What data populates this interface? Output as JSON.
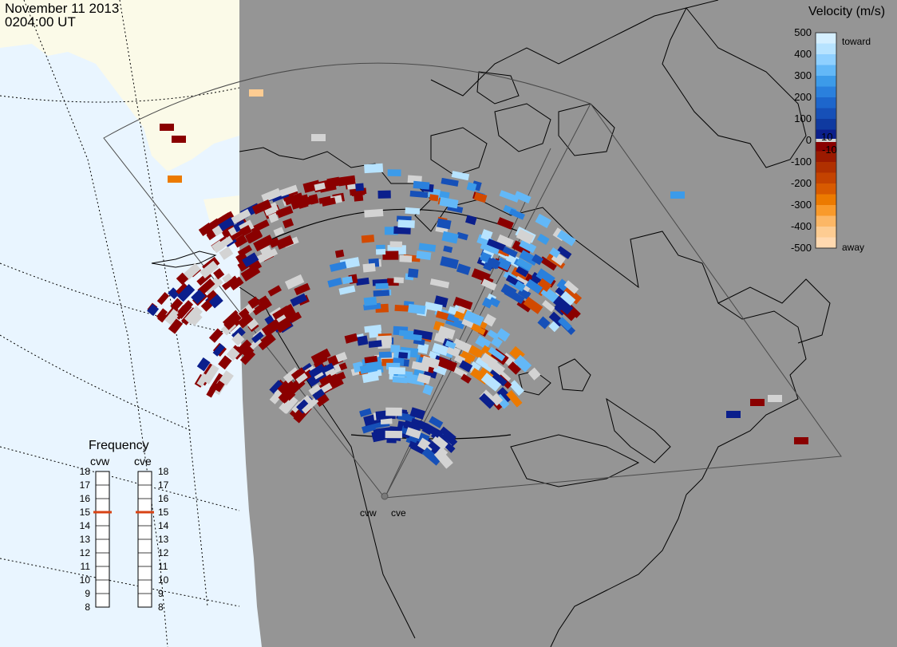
{
  "header": {
    "date": "November 11 2013",
    "time": "0204:00 UT"
  },
  "legend": {
    "title": "Velocity (m/s)",
    "ticks": [
      "500",
      "400",
      "300",
      "200",
      "100",
      "0",
      "-100",
      "-200",
      "-300",
      "-400",
      "-500"
    ],
    "inner_ticks": [
      "10",
      "-10"
    ],
    "toward_label": "toward",
    "away_label": "away",
    "colors": {
      "toward_max": "#d5efff",
      "toward_mid": "#1e88e5",
      "toward_min": "#0b1f8c",
      "away_min": "#8a0000",
      "away_mid": "#d24a00",
      "away_max": "#ffd9b0",
      "ground_scatter": "#d3d3d3"
    }
  },
  "frequency": {
    "title": "Frequency",
    "radars": [
      {
        "name": "cvw",
        "value": 15
      },
      {
        "name": "cve",
        "value": 15
      }
    ],
    "scale": [
      "18",
      "17",
      "16",
      "15",
      "14",
      "13",
      "12",
      "11",
      "10",
      "9",
      "8"
    ]
  },
  "sites": [
    {
      "code": "cvw"
    },
    {
      "code": "cve"
    }
  ],
  "colors": {
    "background_day": "#e9f5ff",
    "land_day": "#fbfae8",
    "night": "#959595",
    "indicator": "#d84315"
  }
}
